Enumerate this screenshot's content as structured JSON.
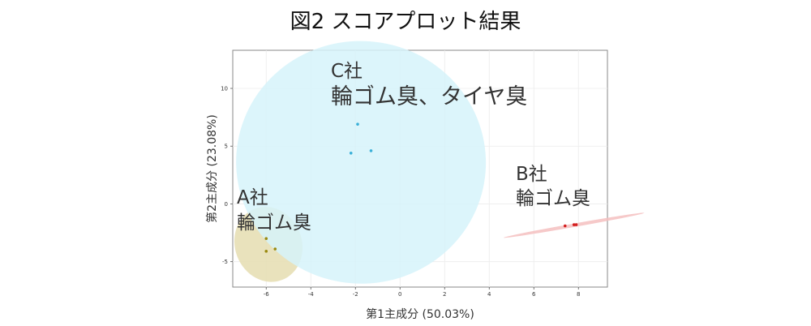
{
  "figure": {
    "title": "図2 スコアプロット結果"
  },
  "chart_data": {
    "type": "scatter",
    "title": "図2 スコアプロット結果",
    "xlabel": "第1主成分 (50.03%)",
    "ylabel": "第2主成分 (23.08%)",
    "xlim": [
      -7.5,
      9.3
    ],
    "ylim": [
      -7.2,
      13.3
    ],
    "xticks": [
      -6,
      -4,
      -2,
      0,
      2,
      4,
      6,
      8
    ],
    "yticks": [
      -5,
      0,
      5,
      10
    ],
    "grid": true,
    "series": [
      {
        "group": "A",
        "color": "#9a8a10",
        "ellipse_color": "#e5ddb0",
        "points": [
          [
            -6.0,
            -3.0
          ],
          [
            -5.6,
            -3.9
          ],
          [
            -6.0,
            -4.1
          ]
        ],
        "ellipse": {
          "center": [
            -5.9,
            -3.5
          ],
          "semi_axes_data": [
            1.5,
            3.3
          ],
          "rotation_deg": -21
        },
        "annotation": [
          "A社",
          "輪ゴム臭"
        ]
      },
      {
        "group": "B",
        "color": "#d42020",
        "ellipse_color": "#f5c0c0",
        "points": [
          [
            7.4,
            -1.9
          ],
          [
            7.8,
            -1.8
          ],
          [
            7.9,
            -1.8
          ]
        ],
        "ellipse": {
          "center": [
            7.8,
            -1.85
          ],
          "semi_axes_data": [
            3.2,
            0.15
          ],
          "rotation_deg": -10
        },
        "annotation": [
          "B社",
          "輪ゴム臭"
        ]
      },
      {
        "group": "C",
        "color": "#3ab0d8",
        "ellipse_color": "#d6f3fa",
        "points": [
          [
            -1.9,
            6.9
          ],
          [
            -1.3,
            4.6
          ],
          [
            -2.2,
            4.4
          ]
        ],
        "ellipse": {
          "center": [
            -1.75,
            3.6
          ],
          "semi_axes_data": [
            5.6,
            10.5
          ],
          "rotation_deg": 4
        },
        "annotation": [
          "C社",
          "輪ゴム臭、タイヤ臭"
        ]
      }
    ]
  }
}
